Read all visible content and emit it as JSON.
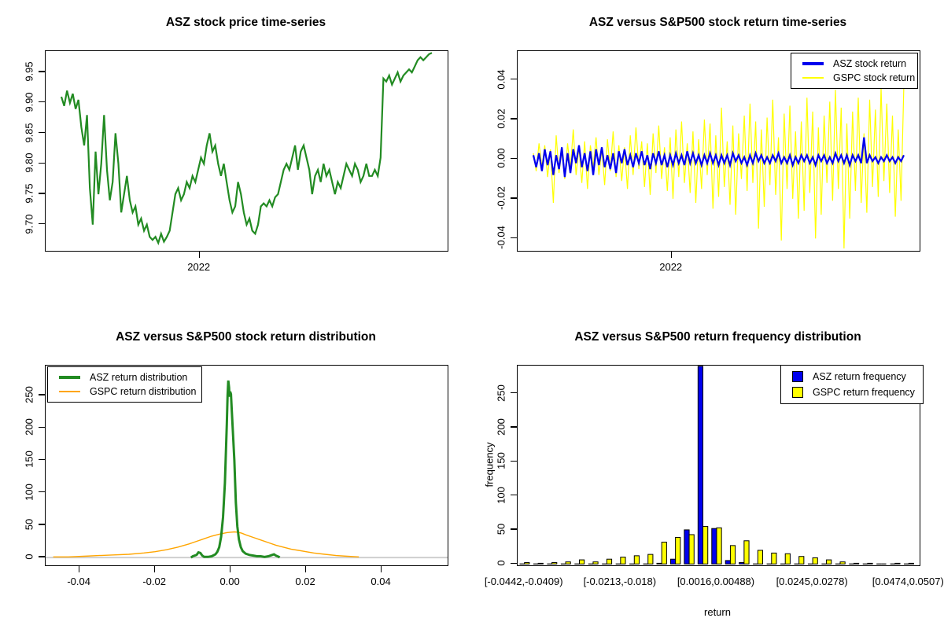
{
  "colors": {
    "green": "#228B22",
    "blue": "#0000EE",
    "yellow": "#FFFF00",
    "orange": "#FFA500",
    "gray_zero_line": "#CFCFCF",
    "axis": "#000000",
    "background": "#FFFFFF"
  },
  "panels": [
    {
      "id": "price",
      "title": "ASZ stock price time-series",
      "y_tick_labels": [
        "9.70",
        "9.75",
        "9.80",
        "9.85",
        "9.90",
        "9.95"
      ],
      "x_tick_labels": [
        "2022"
      ]
    },
    {
      "id": "returns",
      "title": "ASZ versus S&P500 stock return time-series",
      "y_tick_labels": [
        "-0.04",
        "-0.02",
        "0.00",
        "0.02",
        "0.04"
      ],
      "x_tick_labels": [
        "2022"
      ],
      "legend": [
        {
          "label": "ASZ stock return",
          "color_key": "blue",
          "line_weight": 3.5
        },
        {
          "label": "GSPC stock return",
          "color_key": "yellow",
          "line_weight": 1.5
        }
      ]
    },
    {
      "id": "density",
      "title": "ASZ versus S&P500 stock return distribution",
      "y_tick_labels": [
        "0",
        "50",
        "100",
        "150",
        "200",
        "250"
      ],
      "x_tick_labels": [
        "-0.04",
        "-0.02",
        "0.00",
        "0.02",
        "0.04"
      ],
      "legend": [
        {
          "label": "ASZ return distribution",
          "color_key": "green",
          "line_weight": 3.5
        },
        {
          "label": "GSPC return distribution",
          "color_key": "orange",
          "line_weight": 1.5
        }
      ]
    },
    {
      "id": "histogram",
      "title": "ASZ versus S&P500 return frequency distribution",
      "xlabel": "return",
      "ylabel": "frequency",
      "y_tick_labels": [
        "0",
        "50",
        "100",
        "150",
        "200",
        "250"
      ],
      "x_tick_labels": [
        "[-0.0442,-0.0409)",
        "[-0.0213,-0.018)",
        "[0.0016,0.00488)",
        "[0.0245,0.0278)",
        "[0.0474,0.0507)"
      ],
      "legend": [
        {
          "label": "ASZ return frequency",
          "color_key": "blue"
        },
        {
          "label": "GSPC return frequency",
          "color_key": "yellow"
        }
      ]
    }
  ],
  "chart_data": [
    {
      "type": "line",
      "title": "ASZ stock price time-series",
      "xlabel_tick": "2022",
      "x_tick_frac": 0.383,
      "ylim": [
        9.657,
        9.985
      ],
      "y_ticks": [
        9.7,
        9.75,
        9.8,
        9.85,
        9.9,
        9.95
      ],
      "series": [
        {
          "name": "ASZ price",
          "color_key": "green",
          "line_width": 2.2,
          "values": [
            9.91,
            9.895,
            9.92,
            9.9,
            9.915,
            9.89,
            9.905,
            9.86,
            9.83,
            9.88,
            9.76,
            9.7,
            9.82,
            9.75,
            9.8,
            9.88,
            9.79,
            9.74,
            9.77,
            9.85,
            9.8,
            9.72,
            9.75,
            9.78,
            9.74,
            9.72,
            9.73,
            9.7,
            9.71,
            9.69,
            9.7,
            9.68,
            9.675,
            9.68,
            9.67,
            9.685,
            9.672,
            9.68,
            9.69,
            9.72,
            9.75,
            9.76,
            9.74,
            9.75,
            9.77,
            9.76,
            9.78,
            9.77,
            9.79,
            9.81,
            9.8,
            9.83,
            9.85,
            9.82,
            9.83,
            9.8,
            9.78,
            9.8,
            9.77,
            9.74,
            9.72,
            9.73,
            9.77,
            9.75,
            9.72,
            9.7,
            9.71,
            9.69,
            9.685,
            9.7,
            9.73,
            9.735,
            9.73,
            9.74,
            9.73,
            9.745,
            9.75,
            9.77,
            9.79,
            9.8,
            9.79,
            9.81,
            9.83,
            9.79,
            9.82,
            9.83,
            9.81,
            9.79,
            9.75,
            9.78,
            9.79,
            9.77,
            9.8,
            9.78,
            9.79,
            9.77,
            9.75,
            9.77,
            9.76,
            9.78,
            9.8,
            9.79,
            9.78,
            9.8,
            9.79,
            9.77,
            9.78,
            9.8,
            9.78,
            9.78,
            9.79,
            9.78,
            9.81,
            9.94,
            9.935,
            9.945,
            9.93,
            9.94,
            9.95,
            9.935,
            9.945,
            9.95,
            9.955,
            9.95,
            9.96,
            9.97,
            9.975,
            9.97,
            9.975,
            9.98,
            9.982
          ]
        }
      ]
    },
    {
      "type": "line",
      "title": "ASZ versus S&P500 stock return time-series",
      "xlabel_tick": "2022",
      "x_tick_frac": 0.383,
      "ylim": [
        -0.0462,
        0.0545
      ],
      "y_ticks": [
        -0.04,
        -0.02,
        0.0,
        0.02,
        0.04
      ],
      "series": [
        {
          "name": "GSPC stock return",
          "color_key": "yellow",
          "line_width": 1.2,
          "values": [
            0.003,
            -0.006,
            0.008,
            -0.004,
            0.007,
            -0.009,
            0.005,
            -0.022,
            0.012,
            -0.007,
            0.004,
            -0.01,
            0.008,
            -0.005,
            0.015,
            -0.008,
            0.006,
            -0.012,
            0.009,
            -0.015,
            0.007,
            -0.004,
            0.011,
            -0.008,
            0.005,
            -0.013,
            0.01,
            -0.006,
            0.014,
            -0.009,
            0.007,
            -0.011,
            0.006,
            -0.015,
            0.012,
            -0.008,
            0.016,
            -0.005,
            0.009,
            -0.014,
            0.008,
            -0.018,
            0.013,
            -0.007,
            0.017,
            -0.01,
            0.006,
            -0.016,
            0.011,
            -0.02,
            0.015,
            -0.009,
            0.019,
            -0.012,
            0.008,
            -0.017,
            0.014,
            -0.022,
            0.01,
            -0.015,
            0.02,
            -0.008,
            0.018,
            -0.025,
            0.012,
            -0.019,
            0.026,
            -0.014,
            0.009,
            -0.023,
            0.017,
            -0.028,
            0.013,
            -0.01,
            0.022,
            -0.016,
            0.028,
            -0.012,
            0.019,
            -0.035,
            0.015,
            -0.024,
            0.021,
            -0.013,
            0.03,
            -0.018,
            0.011,
            -0.041,
            0.023,
            -0.015,
            0.027,
            -0.02,
            0.014,
            -0.03,
            0.019,
            -0.026,
            0.031,
            -0.017,
            0.024,
            -0.04,
            0.016,
            -0.028,
            0.022,
            -0.012,
            0.029,
            -0.021,
            0.035,
            -0.015,
            0.026,
            -0.045,
            0.018,
            -0.03,
            0.024,
            -0.016,
            0.031,
            -0.022,
            0.013,
            -0.027,
            0.03,
            -0.014,
            0.025,
            -0.019,
            0.036,
            -0.011,
            0.028,
            -0.017,
            0.022,
            -0.029,
            0.015,
            -0.021,
            0.038
          ]
        },
        {
          "name": "ASZ stock return",
          "color_key": "blue",
          "line_width": 2.2,
          "values": [
            0.002,
            -0.004,
            0.003,
            -0.006,
            0.005,
            -0.003,
            0.004,
            -0.008,
            0.002,
            -0.005,
            0.006,
            -0.009,
            0.003,
            -0.007,
            0.005,
            -0.002,
            0.007,
            -0.004,
            0.003,
            -0.006,
            0.004,
            -0.008,
            0.005,
            -0.003,
            0.006,
            -0.004,
            0.002,
            -0.005,
            0.003,
            -0.007,
            0.004,
            -0.002,
            0.005,
            -0.003,
            0.002,
            -0.004,
            0.003,
            -0.002,
            0.004,
            -0.003,
            0.002,
            -0.005,
            0.003,
            -0.002,
            0.004,
            -0.003,
            0.002,
            -0.004,
            0.002,
            -0.003,
            0.003,
            -0.002,
            0.002,
            -0.003,
            0.004,
            -0.002,
            0.003,
            -0.002,
            0.002,
            -0.003,
            0.002,
            -0.002,
            0.003,
            -0.002,
            0.002,
            -0.003,
            0.002,
            -0.002,
            0.002,
            -0.003,
            0.003,
            -0.001,
            0.002,
            -0.002,
            0.001,
            -0.003,
            0.002,
            -0.002,
            0.003,
            -0.001,
            0.002,
            -0.002,
            0.001,
            -0.002,
            0.002,
            -0.001,
            0.003,
            -0.002,
            0.001,
            -0.002,
            0.002,
            -0.003,
            0.001,
            -0.002,
            0.002,
            -0.001,
            0.002,
            -0.002,
            0.001,
            -0.003,
            0.002,
            -0.001,
            0.002,
            -0.002,
            0.001,
            -0.002,
            0.003,
            -0.001,
            0.002,
            -0.002,
            0.002,
            -0.003,
            0.002,
            -0.001,
            0.002,
            -0.002,
            0.011,
            -0.002,
            0.002,
            -0.001,
            0.001,
            -0.002,
            0.001,
            -0.001,
            0.002,
            -0.001,
            0.001,
            -0.002,
            0.001,
            -0.001,
            0.002
          ]
        }
      ]
    },
    {
      "type": "line",
      "title": "ASZ versus S&P500 stock return distribution",
      "xlim": [
        -0.049,
        0.0575
      ],
      "ylim": [
        -12,
        296
      ],
      "x_ticks": [
        -0.04,
        -0.02,
        0.0,
        0.02,
        0.04
      ],
      "y_ticks": [
        0,
        50,
        100,
        150,
        200,
        250
      ],
      "zero_line": true,
      "series": [
        {
          "name": "GSPC return distribution",
          "color_key": "orange",
          "line_width": 1.4,
          "points": [
            [
              -0.047,
              1
            ],
            [
              -0.043,
              1
            ],
            [
              -0.039,
              2
            ],
            [
              -0.035,
              3
            ],
            [
              -0.031,
              4
            ],
            [
              -0.027,
              5
            ],
            [
              -0.023,
              7
            ],
            [
              -0.02,
              9
            ],
            [
              -0.017,
              12
            ],
            [
              -0.014,
              16
            ],
            [
              -0.011,
              21
            ],
            [
              -0.009,
              25
            ],
            [
              -0.007,
              29
            ],
            [
              -0.005,
              33
            ],
            [
              -0.003,
              36
            ],
            [
              -0.001,
              38.5
            ],
            [
              0.0,
              39
            ],
            [
              0.001,
              39.5
            ],
            [
              0.002,
              39
            ],
            [
              0.003,
              37.5
            ],
            [
              0.004,
              35
            ],
            [
              0.006,
              31
            ],
            [
              0.008,
              27
            ],
            [
              0.01,
              23
            ],
            [
              0.012,
              19
            ],
            [
              0.014,
              16
            ],
            [
              0.016,
              13
            ],
            [
              0.018,
              11
            ],
            [
              0.02,
              9
            ],
            [
              0.022,
              7
            ],
            [
              0.025,
              5
            ],
            [
              0.028,
              3
            ],
            [
              0.031,
              2
            ],
            [
              0.034,
              1
            ]
          ]
        },
        {
          "name": "ASZ return distribution",
          "color_key": "green",
          "line_width": 3,
          "points": [
            [
              -0.0105,
              0
            ],
            [
              -0.01,
              2
            ],
            [
              -0.009,
              4
            ],
            [
              -0.0085,
              8
            ],
            [
              -0.008,
              7
            ],
            [
              -0.0075,
              3
            ],
            [
              -0.007,
              1
            ],
            [
              -0.006,
              1
            ],
            [
              -0.005,
              2
            ],
            [
              -0.004,
              5
            ],
            [
              -0.0035,
              9
            ],
            [
              -0.003,
              16
            ],
            [
              -0.0025,
              32
            ],
            [
              -0.002,
              62
            ],
            [
              -0.0015,
              115
            ],
            [
              -0.001,
              205
            ],
            [
              -0.0008,
              250
            ],
            [
              -0.0006,
              273
            ],
            [
              -0.0004,
              262
            ],
            [
              -0.0003,
              248
            ],
            [
              -0.0001,
              256
            ],
            [
              0.0001,
              252
            ],
            [
              0.0003,
              230
            ],
            [
              0.0006,
              195
            ],
            [
              0.001,
              150
            ],
            [
              0.0014,
              85
            ],
            [
              0.0018,
              48
            ],
            [
              0.0022,
              28
            ],
            [
              0.0027,
              16
            ],
            [
              0.0032,
              10
            ],
            [
              0.004,
              6
            ],
            [
              0.005,
              4
            ],
            [
              0.006,
              3
            ],
            [
              0.007,
              2
            ],
            [
              0.008,
              2
            ],
            [
              0.009,
              1
            ],
            [
              0.01,
              2
            ],
            [
              0.011,
              4
            ],
            [
              0.0115,
              5
            ],
            [
              0.012,
              3
            ],
            [
              0.0128,
              1
            ],
            [
              0.013,
              0
            ]
          ]
        }
      ]
    },
    {
      "type": "bar",
      "title": "ASZ versus S&P500 return frequency distribution",
      "xlabel": "return",
      "ylabel": "frequency",
      "n_bins": 29,
      "shown_bin_labels": [
        "[-0.0442,-0.0409)",
        "[-0.0213,-0.018)",
        "[0.0016,0.00488)",
        "[0.0245,0.0278)",
        "[0.0474,0.0507)"
      ],
      "label_bins": [
        0,
        7,
        14,
        21,
        28
      ],
      "ylim": [
        -2,
        291
      ],
      "y_ticks": [
        0,
        50,
        100,
        150,
        200,
        250
      ],
      "series": [
        {
          "name": "ASZ return frequency",
          "color_key": "blue",
          "values": [
            0,
            0,
            0,
            0,
            0,
            0,
            0,
            0,
            0,
            0,
            1,
            7,
            50,
            290,
            52,
            5,
            2,
            0,
            0,
            0,
            0,
            0,
            0,
            0,
            0,
            0,
            0,
            0,
            0
          ]
        },
        {
          "name": "GSPC return frequency",
          "color_key": "yellow",
          "values": [
            2,
            1,
            2,
            3,
            6,
            3,
            7,
            10,
            12,
            14,
            32,
            39,
            43,
            55,
            53,
            27,
            34,
            20,
            16,
            15,
            11,
            9,
            6,
            3,
            1,
            1,
            0,
            1,
            1
          ]
        }
      ]
    }
  ]
}
